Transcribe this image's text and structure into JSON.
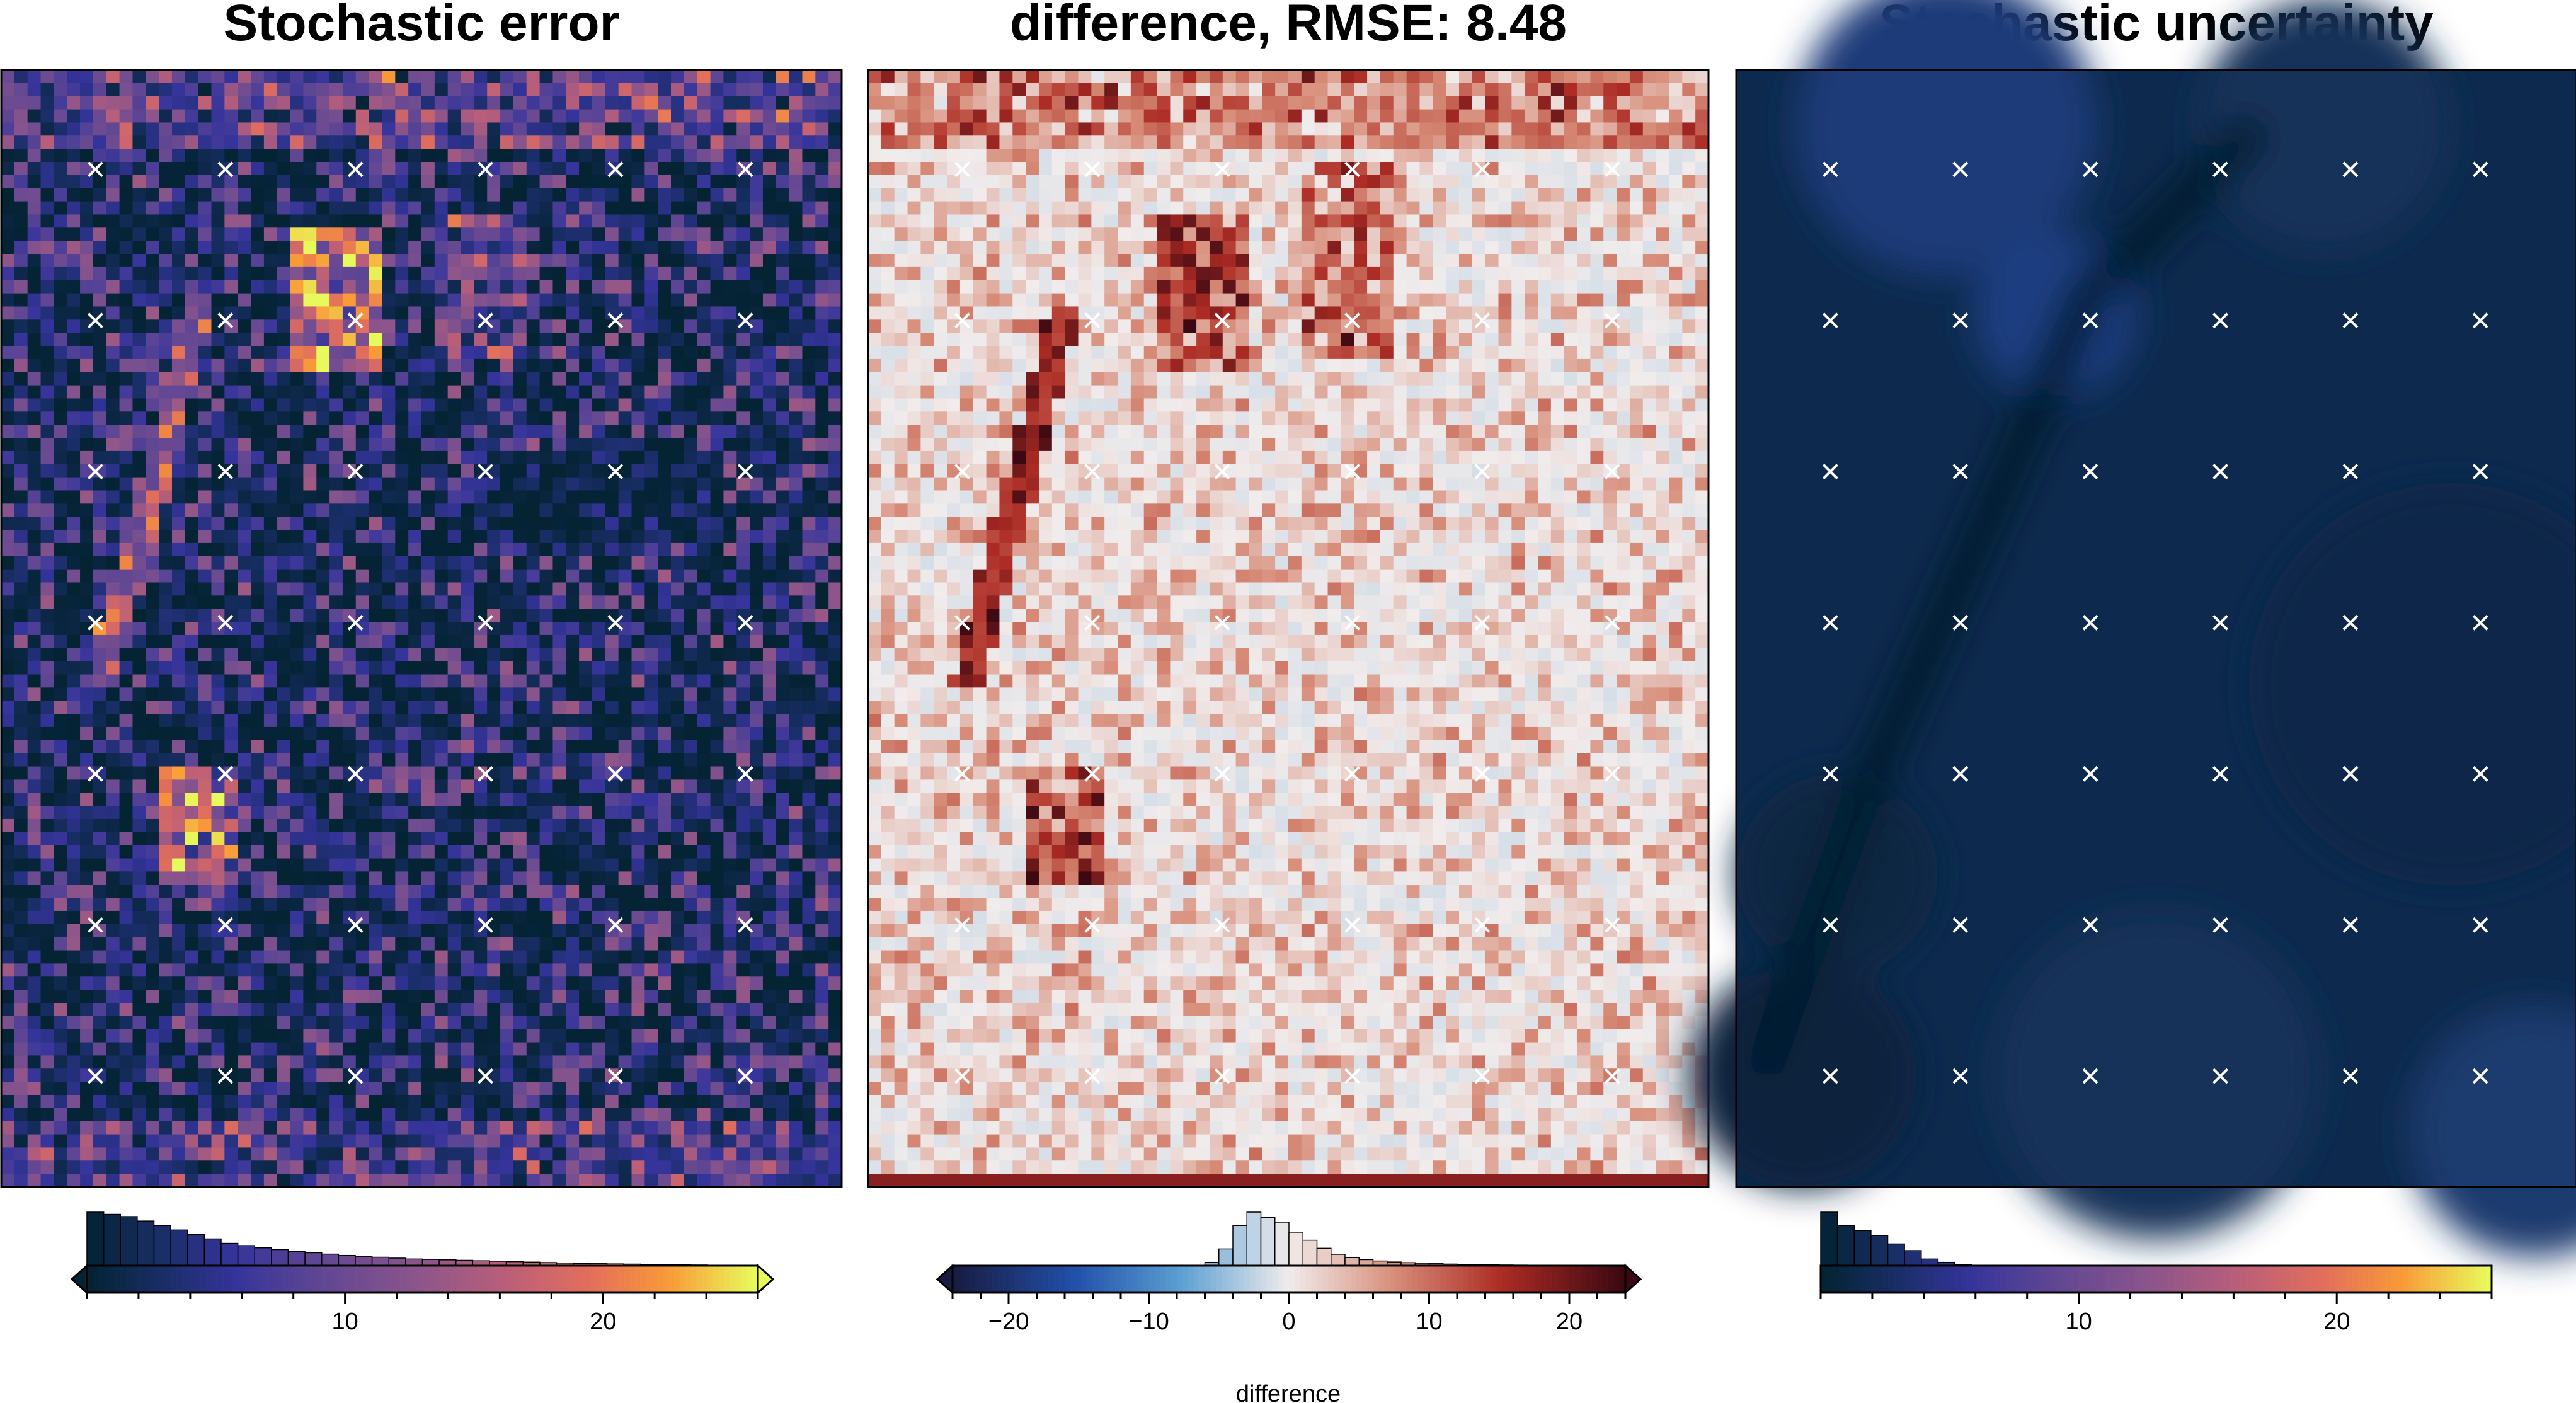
{
  "chart_data": [
    {
      "type": "heatmap",
      "title": "Stochastic error",
      "colormap": "thermal",
      "colorbar": {
        "range": [
          0,
          26
        ],
        "ticks": [
          10,
          20
        ],
        "tick_labels": [
          "10",
          "20"
        ],
        "label": "",
        "extend": "both"
      },
      "histogram": [
        12,
        11.5,
        11,
        10,
        9,
        8,
        7,
        6,
        5,
        4.5,
        4,
        3.6,
        3.2,
        2.9,
        2.6,
        2.3,
        2.1,
        1.9,
        1.7,
        1.5,
        1.4,
        1.3,
        1.2,
        1.1,
        1.0,
        0.9,
        0.8,
        0.7,
        0.6,
        0.5,
        0.45,
        0.4,
        0.35,
        0.3,
        0.25,
        0.2,
        0.15,
        0.1,
        0.05,
        0.02
      ],
      "point_grid": {
        "columns": 6,
        "rows": 7,
        "marker": "x"
      }
    },
    {
      "type": "heatmap",
      "title": "difference, RMSE: 8.48",
      "colormap": "balance",
      "colorbar": {
        "range": [
          -24,
          24
        ],
        "ticks": [
          -20,
          -10,
          0,
          10,
          20
        ],
        "tick_labels": [
          "−20",
          "−10",
          "0",
          "10",
          "20"
        ],
        "label": "difference",
        "extend": "both"
      },
      "histogram": [
        0,
        0,
        0,
        0,
        0,
        0,
        0,
        0,
        0,
        0,
        0,
        0,
        0,
        0,
        0,
        0,
        0,
        0,
        0.5,
        2.5,
        6,
        8,
        7.2,
        6.5,
        5,
        3.8,
        2.6,
        1.7,
        1.2,
        0.9,
        0.7,
        0.55,
        0.45,
        0.38,
        0.3,
        0.24,
        0.2,
        0.16,
        0.13,
        0.1,
        0.08,
        0.06,
        0.04,
        0.03,
        0.02,
        0.01,
        0,
        0
      ],
      "point_grid": {
        "columns": 6,
        "rows": 7,
        "marker": "x"
      }
    },
    {
      "type": "heatmap",
      "title": "Stochastic uncertainty",
      "colormap": "thermal",
      "colorbar": {
        "range": [
          0,
          26
        ],
        "ticks": [
          10,
          20
        ],
        "tick_labels": [
          "10",
          "20"
        ],
        "label": "",
        "extend": "none"
      },
      "histogram": [
        16,
        12,
        10.5,
        9,
        6.5,
        4.5,
        2,
        1,
        0.3,
        0,
        0,
        0,
        0,
        0,
        0,
        0,
        0,
        0,
        0,
        0,
        0,
        0,
        0,
        0,
        0,
        0,
        0,
        0,
        0,
        0,
        0,
        0,
        0,
        0,
        0,
        0,
        0,
        0,
        0,
        0
      ],
      "point_grid": {
        "columns": 6,
        "rows": 7,
        "marker": "x"
      }
    }
  ]
}
